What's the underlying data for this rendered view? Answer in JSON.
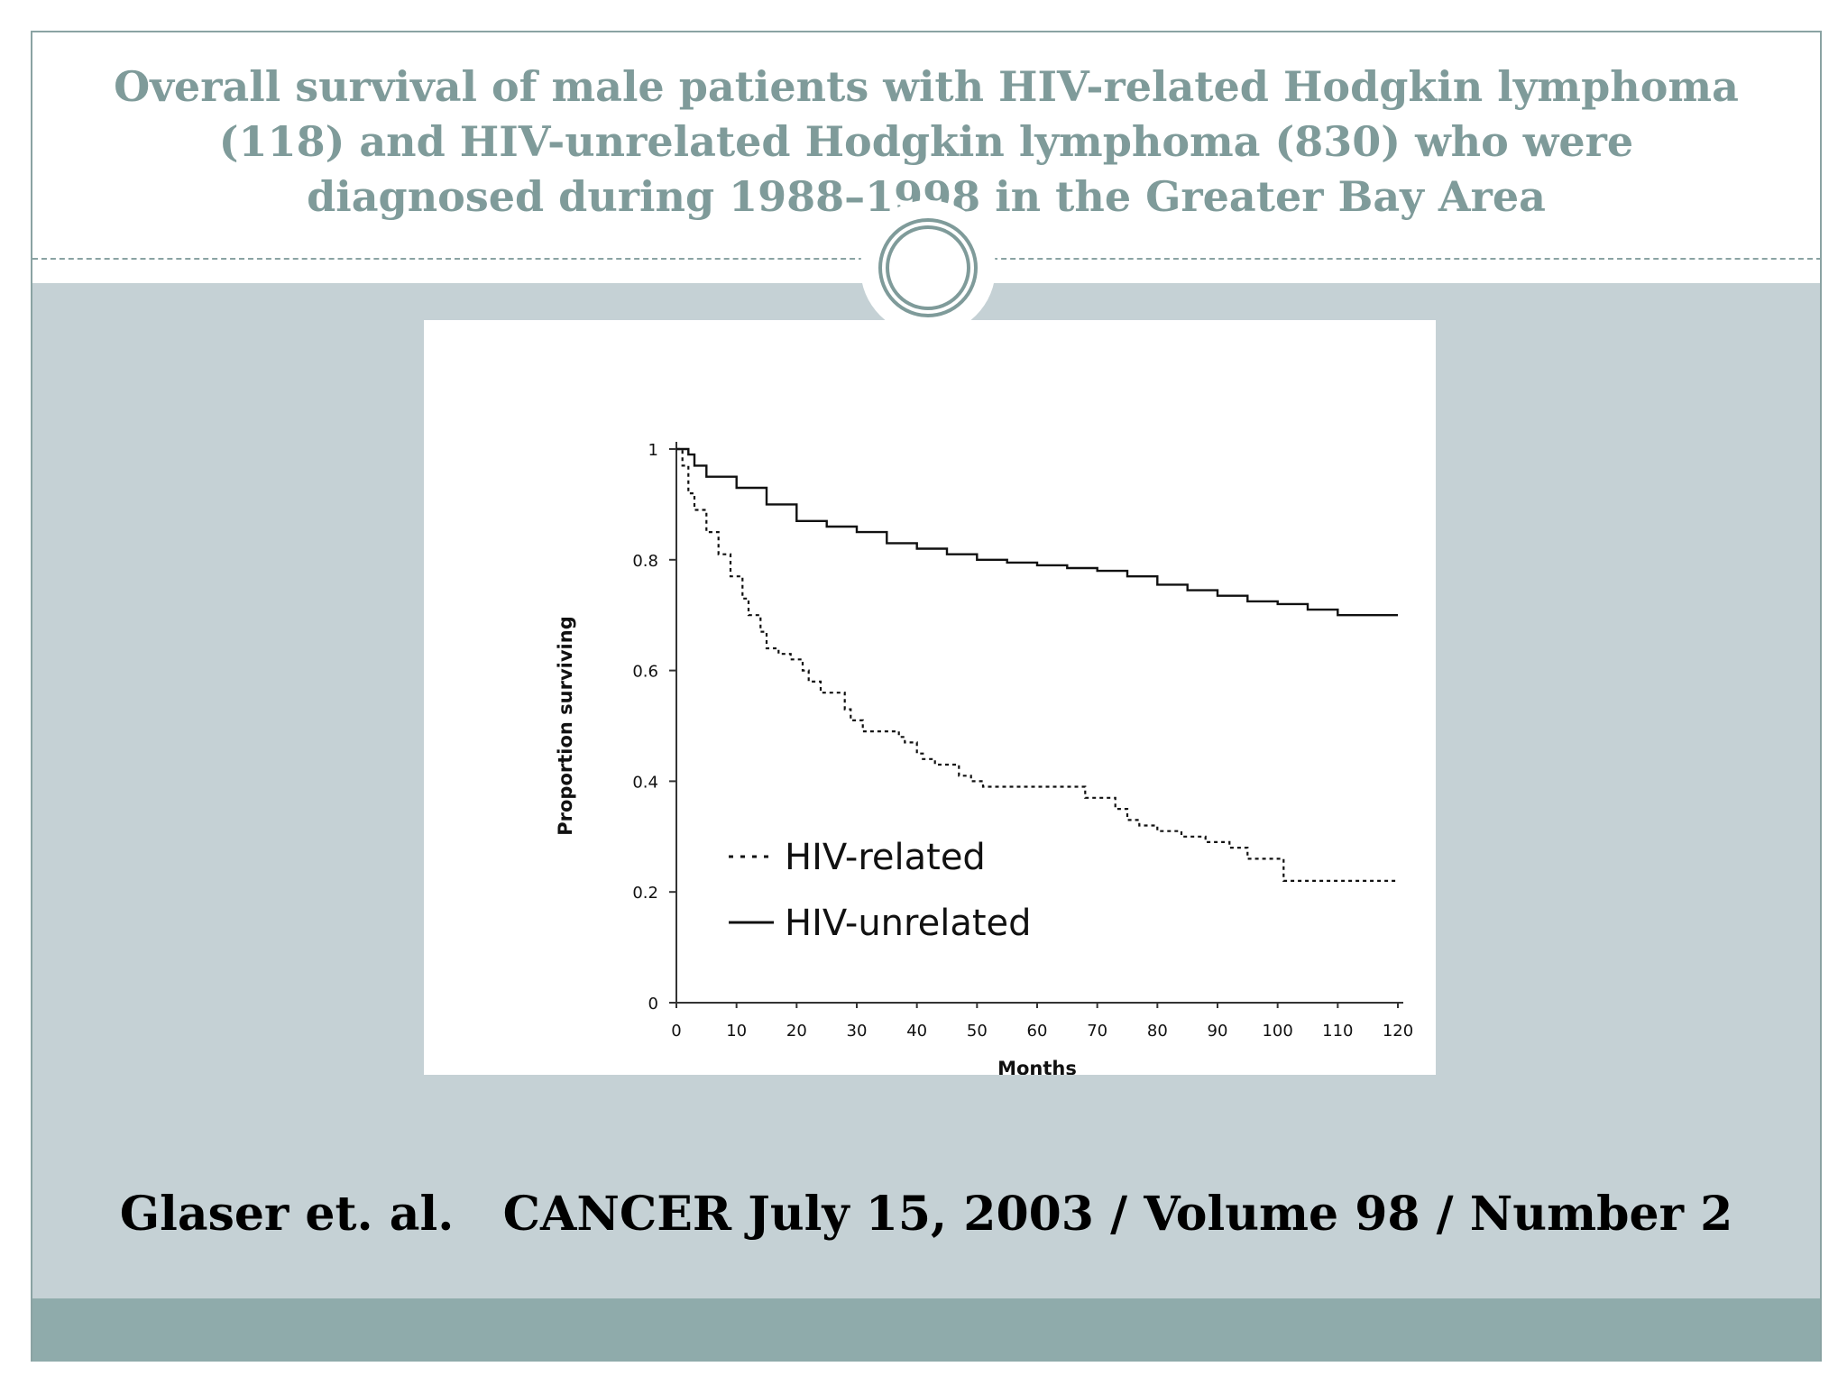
{
  "slide": {
    "title": "Overall survival of male patients with HIV-related Hodgkin lymphoma\n(118) and HIV-unrelated Hodgkin lymphoma (830) who were\ndiagnosed during  1988–1998 in the Greater Bay Area",
    "citation": "Glaser et. al.   CANCER July 15, 2003 / Volume 98 / Number 2"
  },
  "colors": {
    "title": "#7f9b9a",
    "panel": "#c5d1d5",
    "footer_band": "#8fabab",
    "frame": "#8aa3a3"
  },
  "icons": {
    "ornament": "double-ring-icon"
  },
  "chart_data": {
    "type": "line",
    "title": "",
    "xlabel": "Months",
    "ylabel": "Proportion surviving",
    "xlim": [
      0,
      120
    ],
    "ylim": [
      0,
      1
    ],
    "xticks": [
      0,
      10,
      20,
      30,
      40,
      50,
      60,
      70,
      80,
      90,
      100,
      110,
      120
    ],
    "yticks": [
      {
        "value": 0,
        "label": "0"
      },
      {
        "value": 0.2,
        "label": "0.2"
      },
      {
        "value": 0.4,
        "label": "0.4"
      },
      {
        "value": 0.6,
        "label": "0.6"
      },
      {
        "value": 0.8,
        "label": "0.8"
      },
      {
        "value": 1,
        "label": "1"
      }
    ],
    "grid": false,
    "legend": "lower-left",
    "series": [
      {
        "name": "HIV-related",
        "style": "dashed",
        "x": [
          0,
          1,
          2,
          3,
          5,
          7,
          9,
          11,
          12,
          14,
          15,
          17,
          19,
          21,
          22,
          24,
          26,
          28,
          29,
          31,
          33,
          35,
          37,
          38,
          40,
          41,
          43,
          45,
          47,
          49,
          51,
          55,
          60,
          65,
          68,
          73,
          75,
          77,
          80,
          84,
          88,
          92,
          95,
          100,
          101,
          105,
          110,
          120
        ],
        "y": [
          1.0,
          0.97,
          0.92,
          0.89,
          0.85,
          0.81,
          0.77,
          0.73,
          0.7,
          0.67,
          0.64,
          0.63,
          0.62,
          0.6,
          0.58,
          0.56,
          0.56,
          0.53,
          0.51,
          0.49,
          0.49,
          0.49,
          0.48,
          0.47,
          0.45,
          0.44,
          0.43,
          0.43,
          0.41,
          0.4,
          0.39,
          0.39,
          0.39,
          0.39,
          0.37,
          0.35,
          0.33,
          0.32,
          0.31,
          0.3,
          0.29,
          0.28,
          0.26,
          0.26,
          0.22,
          0.22,
          0.22,
          0.22
        ]
      },
      {
        "name": "HIV-unrelated",
        "style": "solid",
        "x": [
          0,
          2,
          3,
          5,
          10,
          15,
          20,
          25,
          30,
          35,
          40,
          45,
          50,
          55,
          60,
          65,
          70,
          75,
          80,
          85,
          90,
          95,
          100,
          105,
          110,
          115,
          120
        ],
        "y": [
          1.0,
          0.99,
          0.97,
          0.95,
          0.93,
          0.9,
          0.87,
          0.86,
          0.85,
          0.83,
          0.82,
          0.81,
          0.8,
          0.795,
          0.79,
          0.785,
          0.78,
          0.77,
          0.755,
          0.745,
          0.735,
          0.725,
          0.72,
          0.71,
          0.7,
          0.7,
          0.7
        ]
      }
    ]
  }
}
